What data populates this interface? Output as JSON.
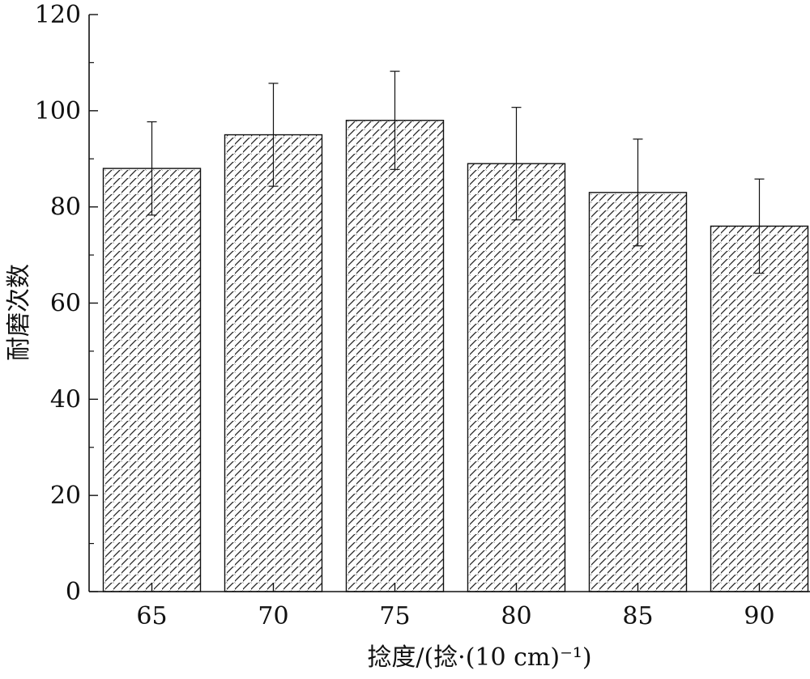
{
  "chart_data": {
    "type": "bar",
    "categories": [
      "65",
      "70",
      "75",
      "80",
      "85",
      "90"
    ],
    "values": [
      88,
      95,
      98,
      89,
      83,
      76
    ],
    "error": [
      9.7,
      10.7,
      10.2,
      11.7,
      11.1,
      9.8
    ],
    "xlabel": "捻度/(捻·(10 cm)⁻¹)",
    "ylabel": "耐磨次数",
    "ylim": [
      0,
      120
    ],
    "yticks": [
      0,
      20,
      40,
      60,
      80,
      100,
      120
    ],
    "grid": false,
    "bar_fill": "hatched",
    "colors": {
      "axis": "#111111",
      "bar_outline": "#111111",
      "hatch": "#222222",
      "background": "#ffffff"
    }
  }
}
